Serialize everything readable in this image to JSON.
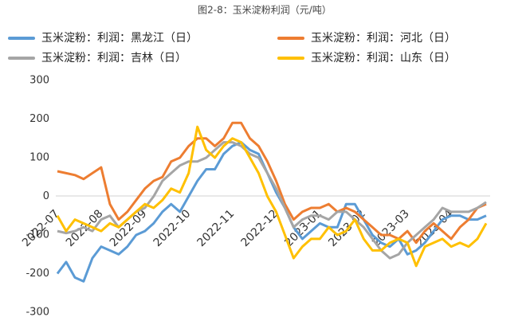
{
  "chart_data": {
    "type": "line",
    "title": "图2-8：玉米淀粉利润（元/吨）",
    "categories": [
      "2022-07",
      null,
      null,
      null,
      null,
      "2022-08",
      null,
      null,
      null,
      null,
      "2022-09",
      null,
      null,
      null,
      null,
      "2022-10",
      null,
      null,
      null,
      null,
      "2022-11",
      null,
      null,
      null,
      null,
      "2022-12",
      null,
      null,
      null,
      null,
      "2023-01",
      null,
      null,
      null,
      null,
      "2023-02",
      null,
      null,
      null,
      null,
      "2023-03",
      null,
      null,
      null,
      null,
      "2023-04",
      null,
      null,
      null,
      null
    ],
    "series": [
      {
        "name": "玉米淀粉：利润：黑龙江（日）",
        "color": "#5b9bd5",
        "values": [
          -200,
          -170,
          -210,
          -220,
          -160,
          -130,
          -140,
          -150,
          -130,
          -100,
          -90,
          -70,
          -40,
          -20,
          -40,
          0,
          40,
          70,
          70,
          110,
          130,
          140,
          120,
          110,
          60,
          10,
          -30,
          -80,
          -110,
          -90,
          -70,
          -80,
          -80,
          -20,
          -20,
          -60,
          -100,
          -120,
          -130,
          -110,
          -150,
          -140,
          -120,
          -90,
          -60,
          -50,
          -50,
          -60,
          -60,
          -50
        ]
      },
      {
        "name": "玉米淀粉：利润：河北（日）",
        "color": "#ed7d31",
        "values": [
          65,
          60,
          55,
          45,
          60,
          75,
          -20,
          -60,
          -40,
          -10,
          20,
          40,
          50,
          90,
          100,
          130,
          150,
          150,
          130,
          150,
          190,
          190,
          150,
          130,
          90,
          40,
          -20,
          -60,
          -40,
          -30,
          -30,
          -20,
          -40,
          -30,
          -40,
          -60,
          -80,
          -100,
          -100,
          -110,
          -90,
          -120,
          -90,
          -70,
          -90,
          -110,
          -80,
          -60,
          -30,
          -20
        ]
      },
      {
        "name": "玉米淀粉：利润：吉林（日）",
        "color": "#a5a5a5",
        "values": [
          -90,
          -95,
          -90,
          -80,
          -90,
          -60,
          -50,
          -80,
          -60,
          -40,
          -30,
          0,
          40,
          60,
          80,
          90,
          90,
          100,
          120,
          140,
          140,
          130,
          110,
          100,
          60,
          20,
          -30,
          -80,
          -60,
          -50,
          -50,
          -60,
          -40,
          -40,
          -60,
          -80,
          -110,
          -140,
          -160,
          -150,
          -120,
          -100,
          -80,
          -60,
          -30,
          -40,
          -40,
          -40,
          -30,
          -15
        ]
      },
      {
        "name": "玉米淀粉：利润：山东（日）",
        "color": "#ffc000",
        "values": [
          -50,
          -90,
          -60,
          -70,
          -80,
          -90,
          -70,
          -80,
          -60,
          -40,
          -20,
          -30,
          -10,
          20,
          10,
          60,
          180,
          120,
          100,
          130,
          150,
          140,
          100,
          60,
          0,
          -40,
          -100,
          -160,
          -130,
          -110,
          -110,
          -80,
          -100,
          -90,
          -60,
          -110,
          -140,
          -140,
          -120,
          -110,
          -120,
          -180,
          -130,
          -120,
          -110,
          -130,
          -120,
          -130,
          -110,
          -70
        ]
      }
    ],
    "ylim": [
      -300,
      300
    ],
    "yticks": [
      300,
      200,
      100,
      0,
      -100,
      -200,
      -300
    ]
  }
}
